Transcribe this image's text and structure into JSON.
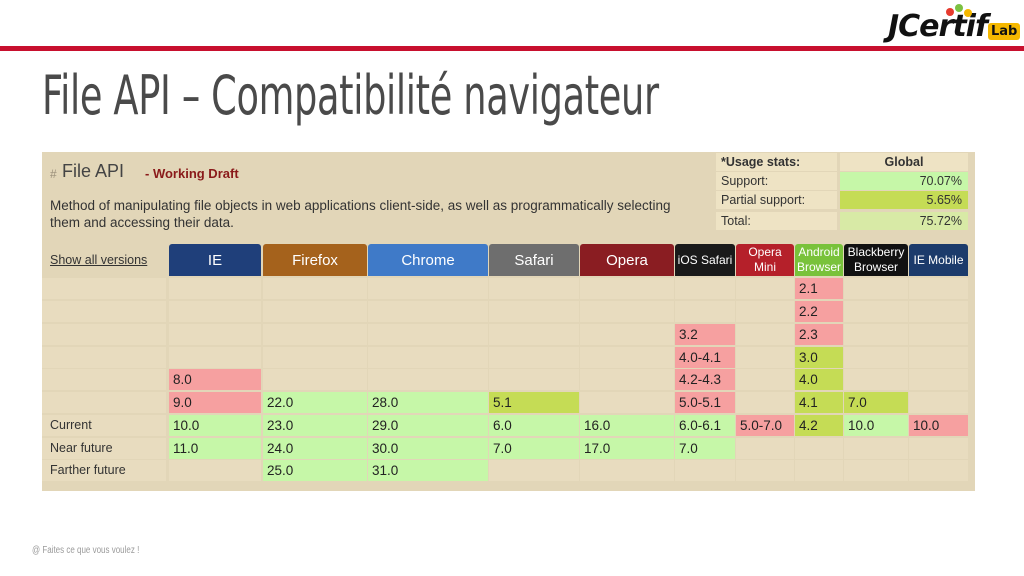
{
  "slide": {
    "title": "File API – Compatibilité navigateur",
    "footer": "@ Faites ce que vous voulez !",
    "logo": {
      "main": "JCertif",
      "lab": "Lab"
    }
  },
  "feature": {
    "hash": "#",
    "title": "File API",
    "status": "- Working Draft",
    "description": "Method of manipulating file objects in web applications client-side, as well as programmatically selecting them and accessing their data.",
    "show_all_versions": "Show all versions"
  },
  "usage": {
    "header": "*Usage stats:",
    "global": "Global",
    "rows": [
      {
        "label": "Support:",
        "value": "70.07%"
      },
      {
        "label": "Partial support:",
        "value": "5.65%"
      },
      {
        "label": "Total:",
        "value": "75.72%"
      }
    ]
  },
  "browsers": [
    "IE",
    "Firefox",
    "Chrome",
    "Safari",
    "Opera",
    "iOS Safari",
    "Opera Mini",
    "Android Browser",
    "Blackberry Browser",
    "IE Mobile"
  ],
  "row_labels": [
    "",
    "",
    "",
    "",
    "",
    "",
    "Current",
    "Near future",
    "Farther future"
  ],
  "cells": [
    [
      {
        "v": "",
        "s": "e"
      },
      {
        "v": "",
        "s": "e"
      },
      {
        "v": "",
        "s": "e"
      },
      {
        "v": "",
        "s": "e"
      },
      {
        "v": "",
        "s": "e"
      },
      {
        "v": "",
        "s": "e"
      },
      {
        "v": "",
        "s": "e"
      },
      {
        "v": "2.1",
        "s": "n"
      },
      {
        "v": "",
        "s": "e"
      },
      {
        "v": "",
        "s": "e"
      }
    ],
    [
      {
        "v": "",
        "s": "e"
      },
      {
        "v": "",
        "s": "e"
      },
      {
        "v": "",
        "s": "e"
      },
      {
        "v": "",
        "s": "e"
      },
      {
        "v": "",
        "s": "e"
      },
      {
        "v": "",
        "s": "e"
      },
      {
        "v": "",
        "s": "e"
      },
      {
        "v": "2.2",
        "s": "n"
      },
      {
        "v": "",
        "s": "e"
      },
      {
        "v": "",
        "s": "e"
      }
    ],
    [
      {
        "v": "",
        "s": "e"
      },
      {
        "v": "",
        "s": "e"
      },
      {
        "v": "",
        "s": "e"
      },
      {
        "v": "",
        "s": "e"
      },
      {
        "v": "",
        "s": "e"
      },
      {
        "v": "3.2",
        "s": "n"
      },
      {
        "v": "",
        "s": "e"
      },
      {
        "v": "2.3",
        "s": "n"
      },
      {
        "v": "",
        "s": "e"
      },
      {
        "v": "",
        "s": "e"
      }
    ],
    [
      {
        "v": "",
        "s": "e"
      },
      {
        "v": "",
        "s": "e"
      },
      {
        "v": "",
        "s": "e"
      },
      {
        "v": "",
        "s": "e"
      },
      {
        "v": "",
        "s": "e"
      },
      {
        "v": "4.0-4.1",
        "s": "n"
      },
      {
        "v": "",
        "s": "e"
      },
      {
        "v": "3.0",
        "s": "p"
      },
      {
        "v": "",
        "s": "e"
      },
      {
        "v": "",
        "s": "e"
      }
    ],
    [
      {
        "v": "8.0",
        "s": "n"
      },
      {
        "v": "",
        "s": "e"
      },
      {
        "v": "",
        "s": "e"
      },
      {
        "v": "",
        "s": "e"
      },
      {
        "v": "",
        "s": "e"
      },
      {
        "v": "4.2-4.3",
        "s": "n"
      },
      {
        "v": "",
        "s": "e"
      },
      {
        "v": "4.0",
        "s": "p"
      },
      {
        "v": "",
        "s": "e"
      },
      {
        "v": "",
        "s": "e"
      }
    ],
    [
      {
        "v": "9.0",
        "s": "n"
      },
      {
        "v": "22.0",
        "s": "y"
      },
      {
        "v": "28.0",
        "s": "y"
      },
      {
        "v": "5.1",
        "s": "p"
      },
      {
        "v": "",
        "s": "e"
      },
      {
        "v": "5.0-5.1",
        "s": "n"
      },
      {
        "v": "",
        "s": "e"
      },
      {
        "v": "4.1",
        "s": "p"
      },
      {
        "v": "7.0",
        "s": "p"
      },
      {
        "v": "",
        "s": "e"
      }
    ],
    [
      {
        "v": "10.0",
        "s": "y"
      },
      {
        "v": "23.0",
        "s": "y"
      },
      {
        "v": "29.0",
        "s": "y"
      },
      {
        "v": "6.0",
        "s": "y"
      },
      {
        "v": "16.0",
        "s": "y"
      },
      {
        "v": "6.0-6.1",
        "s": "y"
      },
      {
        "v": "5.0-7.0",
        "s": "n"
      },
      {
        "v": "4.2",
        "s": "p"
      },
      {
        "v": "10.0",
        "s": "y"
      },
      {
        "v": "10.0",
        "s": "n"
      }
    ],
    [
      {
        "v": "11.0",
        "s": "y"
      },
      {
        "v": "24.0",
        "s": "y"
      },
      {
        "v": "30.0",
        "s": "y"
      },
      {
        "v": "7.0",
        "s": "y"
      },
      {
        "v": "17.0",
        "s": "y"
      },
      {
        "v": "7.0",
        "s": "y"
      },
      {
        "v": "",
        "s": "e"
      },
      {
        "v": "",
        "s": "e"
      },
      {
        "v": "",
        "s": "e"
      },
      {
        "v": "",
        "s": "e"
      }
    ],
    [
      {
        "v": "",
        "s": "e"
      },
      {
        "v": "25.0",
        "s": "y"
      },
      {
        "v": "31.0",
        "s": "y"
      },
      {
        "v": "",
        "s": "e"
      },
      {
        "v": "",
        "s": "e"
      },
      {
        "v": "",
        "s": "e"
      },
      {
        "v": "",
        "s": "e"
      },
      {
        "v": "",
        "s": "e"
      },
      {
        "v": "",
        "s": "e"
      },
      {
        "v": "",
        "s": "e"
      }
    ]
  ],
  "colors": {
    "red_line": "#c8102e",
    "supported": "#c6f7a8",
    "partial": "#c5dc55",
    "unsupported": "#f6a0a0",
    "empty": "#e8dcbf",
    "header": [
      "#1f3f7a",
      "#a5621c",
      "#3f7ac8",
      "#6e6e6e",
      "#8a1d22",
      "#1a1a1a",
      "#b5202a",
      "#79c23b",
      "#111111",
      "#1c3b6b"
    ]
  }
}
